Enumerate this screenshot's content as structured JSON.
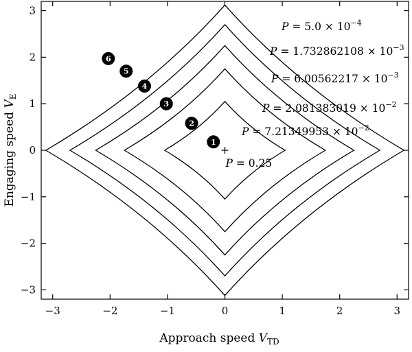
{
  "chart_data": {
    "type": "line",
    "xlabel": "Approach speed",
    "xlabel_symbol": "V",
    "xlabel_sub": "TD",
    "ylabel": "Engaging speed",
    "ylabel_symbol": "V",
    "ylabel_sub": "E",
    "xlim": [
      -3.2,
      3.2
    ],
    "ylim": [
      -3.2,
      3.2
    ],
    "xticks": [
      -3,
      -2,
      -1,
      0,
      1,
      2,
      3
    ],
    "yticks": [
      -3,
      -2,
      -1,
      0,
      1,
      2,
      3
    ],
    "xtick_labels": [
      "−3",
      "−2",
      "−1",
      "0",
      "1",
      "2",
      "3"
    ],
    "ytick_labels": [
      "−3",
      "−2",
      "−1",
      "0",
      "1",
      "2",
      "3"
    ],
    "grid": false,
    "legend": "none",
    "center": {
      "x": 0,
      "y": 0,
      "label": "P = 0.25"
    },
    "contours": [
      {
        "P": "7.21349953 × 10^−2",
        "label_main": "P = 7.21349953 × 10",
        "label_exp": "−2",
        "half_width": 1.05,
        "half_height": 1.05
      },
      {
        "P": "2.081383019 × 10^−2",
        "label_main": "P = 2.081383019 × 10",
        "label_exp": "−2",
        "half_width": 1.75,
        "half_height": 1.75
      },
      {
        "P": "6.00562217 × 10^−3",
        "label_main": "P = 6.00562217 × 10",
        "label_exp": "−3",
        "half_width": 2.25,
        "half_height": 2.25
      },
      {
        "P": "1.732862108 × 10^−3",
        "label_main": "P = 1.732862108 × 10",
        "label_exp": "−3",
        "half_width": 2.7,
        "half_height": 2.7
      },
      {
        "P": "5.0 × 10^−4",
        "label_main": "P = 5.0 × 10",
        "label_exp": "−4",
        "half_width": 3.12,
        "half_height": 3.12
      }
    ],
    "markers": [
      {
        "label": "1",
        "x": -0.2,
        "y": 0.18
      },
      {
        "label": "2",
        "x": -0.58,
        "y": 0.58
      },
      {
        "label": "3",
        "x": -1.02,
        "y": 1.0
      },
      {
        "label": "4",
        "x": -1.4,
        "y": 1.38
      },
      {
        "label": "5",
        "x": -1.72,
        "y": 1.7
      },
      {
        "label": "6",
        "x": -2.03,
        "y": 1.97
      }
    ]
  }
}
